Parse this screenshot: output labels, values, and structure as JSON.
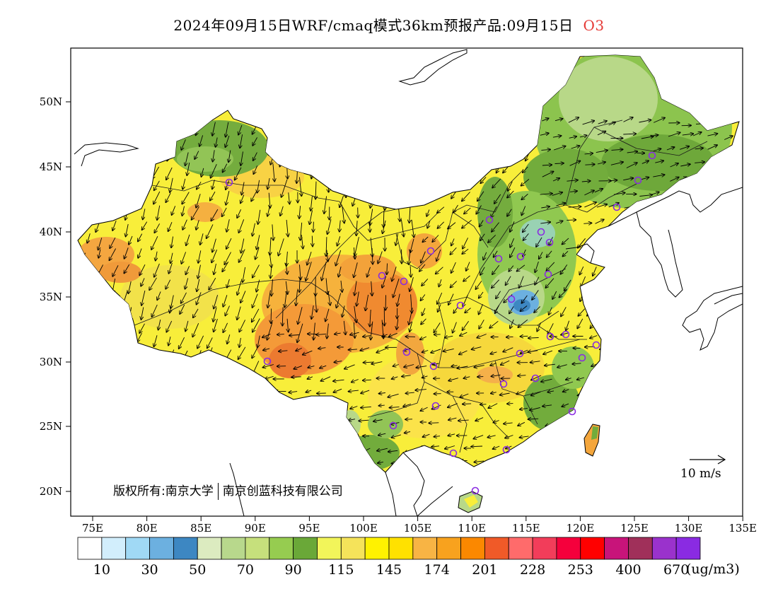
{
  "header": {
    "title": "2024年09月15日WRF/cmaq模式36km预报产品:09月15日",
    "species": "O3"
  },
  "map": {
    "lat_labels": [
      "50N",
      "45N",
      "40N",
      "35N",
      "30N",
      "25N",
      "20N"
    ],
    "lon_labels": [
      "75E",
      "80E",
      "85E",
      "90E",
      "95E",
      "100E",
      "105E",
      "110E",
      "115E",
      "120E",
      "125E",
      "130E",
      "135E"
    ],
    "copyright_left": "版权所有:南京大学",
    "copyright_right": "南京创蓝科技有限公司",
    "wind_reference": "10 m/s"
  },
  "legend": {
    "unit": "(ug/m3)",
    "colors": [
      "#ffffff",
      "#d2eefc",
      "#a0d9f5",
      "#6cb0e0",
      "#3d87c2",
      "#dcebc0",
      "#b8d88c",
      "#c6e07c",
      "#96cc50",
      "#6aa838",
      "#f2f55a",
      "#f5e35a",
      "#fff200",
      "#ffe100",
      "#f8b444",
      "#f8a21e",
      "#fb8800",
      "#f05a28",
      "#ff6b6b",
      "#f23d5a",
      "#f5003c",
      "#ff0000",
      "#c8147a",
      "#a0305a",
      "#9a32cc",
      "#8a2be2"
    ],
    "labels": [
      "10",
      "30",
      "50",
      "70",
      "90",
      "115",
      "145",
      "174",
      "201",
      "228",
      "253",
      "400",
      "670"
    ]
  }
}
